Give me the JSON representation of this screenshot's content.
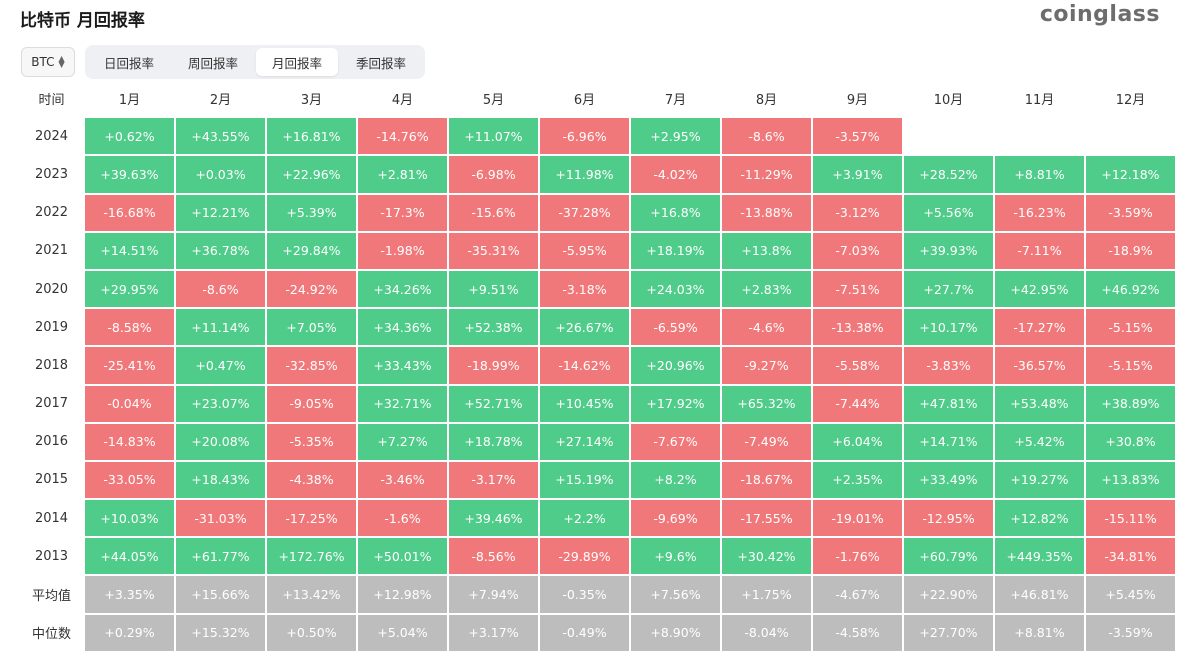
{
  "header": {
    "title": "比特币 月回报率",
    "brand": "coinglass"
  },
  "controls": {
    "coin": "BTC",
    "tabs": [
      {
        "label": "日回报率",
        "active": false
      },
      {
        "label": "周回报率",
        "active": false
      },
      {
        "label": "月回报率",
        "active": true
      },
      {
        "label": "季回报率",
        "active": false
      }
    ]
  },
  "colors": {
    "positive": "#4fcc8a",
    "negative": "#f0787a",
    "summary": "#bdbdbd"
  },
  "table": {
    "corner": "时间",
    "months": [
      "1月",
      "2月",
      "3月",
      "4月",
      "5月",
      "6月",
      "7月",
      "8月",
      "9月",
      "10月",
      "11月",
      "12月"
    ],
    "rows": [
      {
        "year": "2024",
        "values": [
          "+0.62%",
          "+43.55%",
          "+16.81%",
          "-14.76%",
          "+11.07%",
          "-6.96%",
          "+2.95%",
          "-8.6%",
          "-3.57%",
          "",
          "",
          ""
        ]
      },
      {
        "year": "2023",
        "values": [
          "+39.63%",
          "+0.03%",
          "+22.96%",
          "+2.81%",
          "-6.98%",
          "+11.98%",
          "-4.02%",
          "-11.29%",
          "+3.91%",
          "+28.52%",
          "+8.81%",
          "+12.18%"
        ]
      },
      {
        "year": "2022",
        "values": [
          "-16.68%",
          "+12.21%",
          "+5.39%",
          "-17.3%",
          "-15.6%",
          "-37.28%",
          "+16.8%",
          "-13.88%",
          "-3.12%",
          "+5.56%",
          "-16.23%",
          "-3.59%"
        ]
      },
      {
        "year": "2021",
        "values": [
          "+14.51%",
          "+36.78%",
          "+29.84%",
          "-1.98%",
          "-35.31%",
          "-5.95%",
          "+18.19%",
          "+13.8%",
          "-7.03%",
          "+39.93%",
          "-7.11%",
          "-18.9%"
        ]
      },
      {
        "year": "2020",
        "values": [
          "+29.95%",
          "-8.6%",
          "-24.92%",
          "+34.26%",
          "+9.51%",
          "-3.18%",
          "+24.03%",
          "+2.83%",
          "-7.51%",
          "+27.7%",
          "+42.95%",
          "+46.92%"
        ]
      },
      {
        "year": "2019",
        "values": [
          "-8.58%",
          "+11.14%",
          "+7.05%",
          "+34.36%",
          "+52.38%",
          "+26.67%",
          "-6.59%",
          "-4.6%",
          "-13.38%",
          "+10.17%",
          "-17.27%",
          "-5.15%"
        ]
      },
      {
        "year": "2018",
        "values": [
          "-25.41%",
          "+0.47%",
          "-32.85%",
          "+33.43%",
          "-18.99%",
          "-14.62%",
          "+20.96%",
          "-9.27%",
          "-5.58%",
          "-3.83%",
          "-36.57%",
          "-5.15%"
        ]
      },
      {
        "year": "2017",
        "values": [
          "-0.04%",
          "+23.07%",
          "-9.05%",
          "+32.71%",
          "+52.71%",
          "+10.45%",
          "+17.92%",
          "+65.32%",
          "-7.44%",
          "+47.81%",
          "+53.48%",
          "+38.89%"
        ]
      },
      {
        "year": "2016",
        "values": [
          "-14.83%",
          "+20.08%",
          "-5.35%",
          "+7.27%",
          "+18.78%",
          "+27.14%",
          "-7.67%",
          "-7.49%",
          "+6.04%",
          "+14.71%",
          "+5.42%",
          "+30.8%"
        ]
      },
      {
        "year": "2015",
        "values": [
          "-33.05%",
          "+18.43%",
          "-4.38%",
          "-3.46%",
          "-3.17%",
          "+15.19%",
          "+8.2%",
          "-18.67%",
          "+2.35%",
          "+33.49%",
          "+19.27%",
          "+13.83%"
        ]
      },
      {
        "year": "2014",
        "values": [
          "+10.03%",
          "-31.03%",
          "-17.25%",
          "-1.6%",
          "+39.46%",
          "+2.2%",
          "-9.69%",
          "-17.55%",
          "-19.01%",
          "-12.95%",
          "+12.82%",
          "-15.11%"
        ]
      },
      {
        "year": "2013",
        "values": [
          "+44.05%",
          "+61.77%",
          "+172.76%",
          "+50.01%",
          "-8.56%",
          "-29.89%",
          "+9.6%",
          "+30.42%",
          "-1.76%",
          "+60.79%",
          "+449.35%",
          "-34.81%"
        ]
      }
    ],
    "summary": [
      {
        "label": "平均值",
        "values": [
          "+3.35%",
          "+15.66%",
          "+13.42%",
          "+12.98%",
          "+7.94%",
          "-0.35%",
          "+7.56%",
          "+1.75%",
          "-4.67%",
          "+22.90%",
          "+46.81%",
          "+5.45%"
        ]
      },
      {
        "label": "中位数",
        "values": [
          "+0.29%",
          "+15.32%",
          "+0.50%",
          "+5.04%",
          "+3.17%",
          "-0.49%",
          "+8.90%",
          "-8.04%",
          "-4.58%",
          "+27.70%",
          "+8.81%",
          "-3.59%"
        ]
      }
    ]
  }
}
